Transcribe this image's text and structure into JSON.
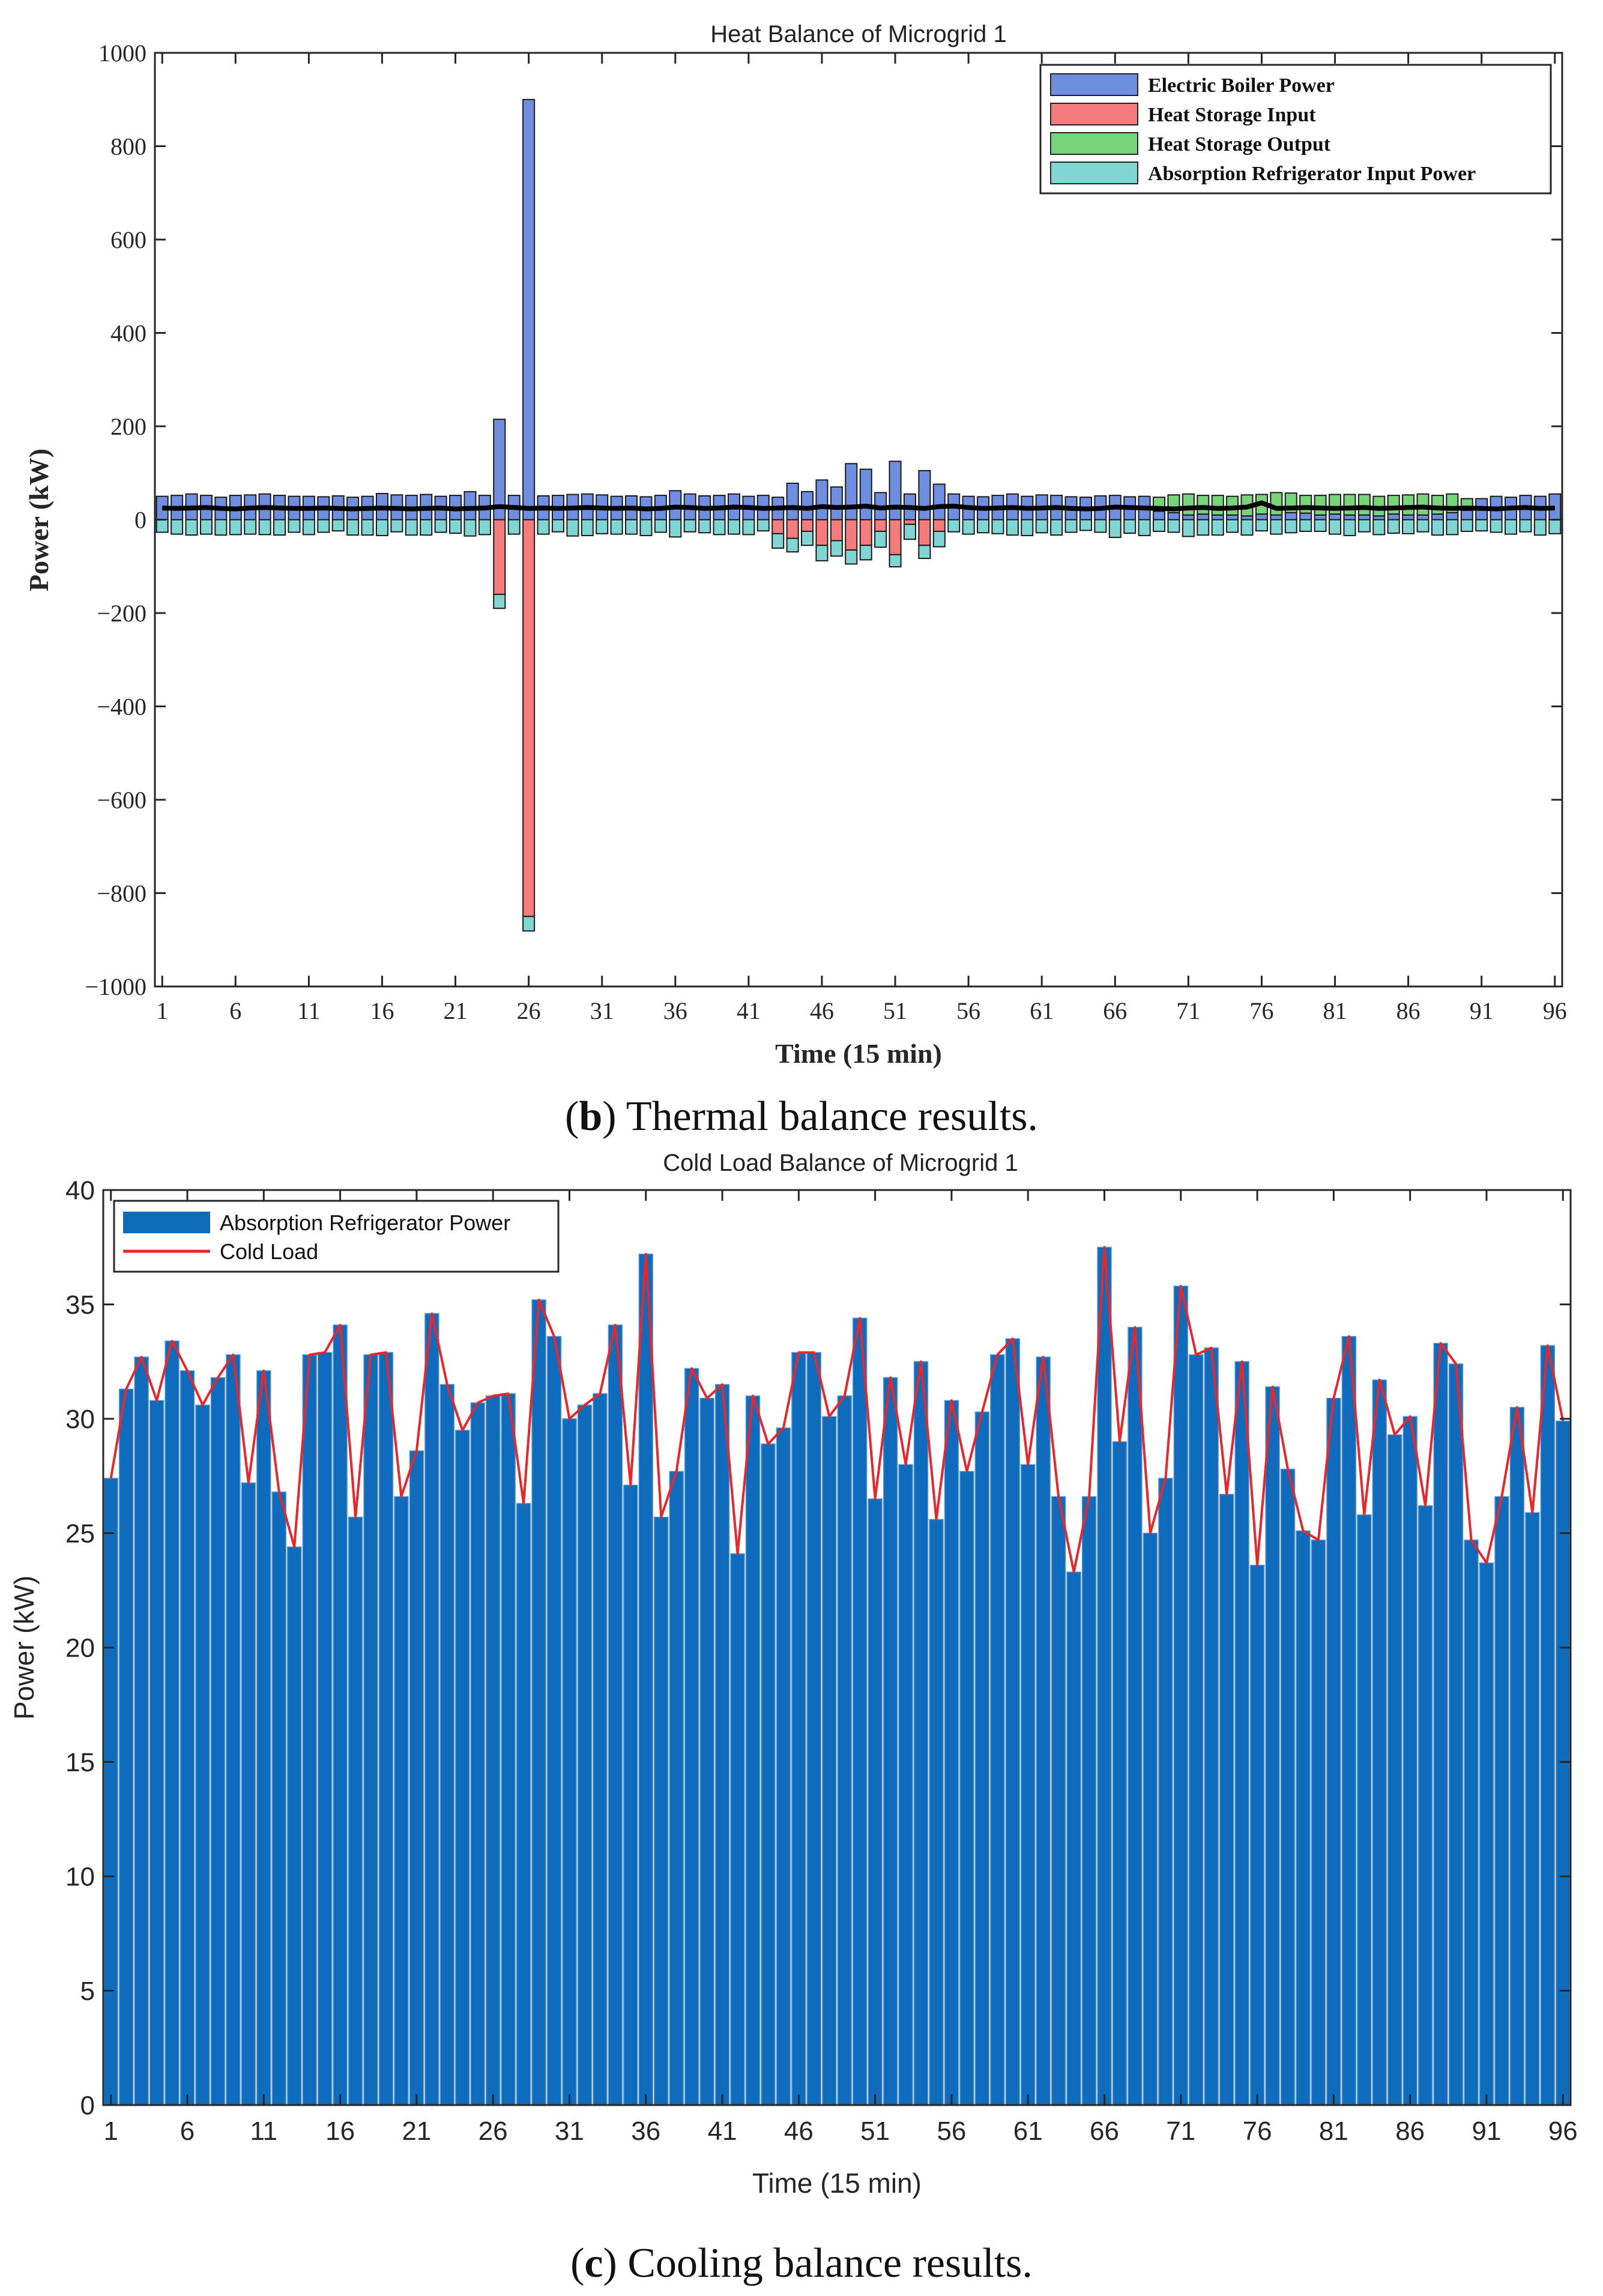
{
  "figure": {
    "caption_b_label": "b",
    "caption_b_text": "Thermal balance results.",
    "caption_c_label": "c",
    "caption_c_text": "Cooling balance results."
  },
  "colors": {
    "electric_boiler": "#6f8ee0",
    "heat_storage_input": "#f47c7c",
    "heat_storage_output": "#78d478",
    "absorption_input": "#7fd6d3",
    "heat_load_line": "#000000",
    "cold_bar": "#0f6cbd",
    "cold_line": "#e8262b"
  },
  "chart_data": [
    {
      "id": "thermal",
      "type": "bar",
      "stacked": true,
      "title": "Heat Balance of Microgrid 1",
      "xlabel": "Time (15 min)",
      "ylabel": "Power (kW)",
      "xlim": [
        1,
        96
      ],
      "ylim": [
        -1000,
        1000
      ],
      "xticks": [
        1,
        6,
        11,
        16,
        21,
        26,
        31,
        36,
        41,
        46,
        51,
        56,
        61,
        66,
        71,
        76,
        81,
        86,
        91,
        96
      ],
      "yticks": [
        -1000,
        -800,
        -600,
        -400,
        -200,
        0,
        200,
        400,
        600,
        800,
        1000
      ],
      "ytick_labels": [
        "−1000",
        "−800",
        "−600",
        "−400",
        "−200",
        "0",
        "200",
        "400",
        "600",
        "800",
        "1000"
      ],
      "legend_position": "top-right",
      "series": [
        {
          "name": "Electric Boiler Power",
          "color_key": "electric_boiler",
          "values": [
            50,
            52,
            55,
            52,
            48,
            52,
            53,
            55,
            52,
            50,
            50,
            49,
            51,
            48,
            50,
            56,
            53,
            52,
            54,
            50,
            52,
            60,
            52,
            215,
            52,
            900,
            51,
            52,
            54,
            55,
            53,
            50,
            51,
            49,
            52,
            62,
            55,
            51,
            52,
            55,
            50,
            52,
            48,
            78,
            60,
            85,
            70,
            120,
            108,
            58,
            125,
            55,
            105,
            76,
            55,
            50,
            49,
            52,
            55,
            50,
            53,
            52,
            49,
            48,
            51,
            52,
            49,
            50,
            18,
            15,
            10,
            12,
            10,
            10,
            8,
            12,
            10,
            15,
            14,
            10,
            12,
            10,
            10,
            8,
            12,
            10,
            10,
            12,
            15,
            20,
            45,
            50,
            48,
            52,
            50,
            55
          ]
        },
        {
          "name": "Heat Storage Input",
          "color_key": "heat_storage_input",
          "values": [
            0,
            0,
            0,
            0,
            0,
            0,
            0,
            0,
            0,
            0,
            0,
            0,
            0,
            0,
            0,
            0,
            0,
            0,
            0,
            0,
            0,
            0,
            0,
            -160,
            0,
            -850,
            0,
            0,
            0,
            0,
            0,
            0,
            0,
            0,
            0,
            0,
            0,
            0,
            0,
            0,
            0,
            0,
            -30,
            -40,
            -25,
            -55,
            -45,
            -65,
            -55,
            -25,
            -75,
            -10,
            -55,
            -25,
            0,
            0,
            0,
            0,
            0,
            0,
            0,
            0,
            0,
            0,
            0,
            0,
            0,
            0,
            0,
            0,
            0,
            0,
            0,
            0,
            0,
            0,
            0,
            0,
            0,
            0,
            0,
            0,
            0,
            0,
            0,
            0,
            0,
            0,
            0,
            0,
            0,
            0,
            0,
            0,
            0,
            0
          ]
        },
        {
          "name": "Heat Storage Output",
          "color_key": "heat_storage_output",
          "values": [
            0,
            0,
            0,
            0,
            0,
            0,
            0,
            0,
            0,
            0,
            0,
            0,
            0,
            0,
            0,
            0,
            0,
            0,
            0,
            0,
            0,
            0,
            0,
            0,
            0,
            0,
            0,
            0,
            0,
            0,
            0,
            0,
            0,
            0,
            0,
            0,
            0,
            0,
            0,
            0,
            0,
            0,
            0,
            0,
            0,
            0,
            0,
            0,
            0,
            0,
            0,
            0,
            0,
            0,
            0,
            0,
            0,
            0,
            0,
            0,
            0,
            0,
            0,
            0,
            0,
            0,
            0,
            0,
            30,
            38,
            45,
            40,
            42,
            40,
            45,
            42,
            48,
            42,
            38,
            42,
            42,
            44,
            44,
            42,
            40,
            43,
            45,
            40,
            40,
            25,
            0,
            0,
            0,
            0,
            0,
            0
          ]
        },
        {
          "name": "Absorption Refrigerator Input Power",
          "color_key": "absorption_input",
          "values": [
            -27,
            -31,
            -33,
            -31,
            -33,
            -32,
            -31,
            -32,
            -33,
            -27,
            -32,
            -27,
            -24,
            -33,
            -33,
            -34,
            -26,
            -33,
            -33,
            -27,
            -29,
            -35,
            -32,
            -30,
            -31,
            -31,
            -31,
            -26,
            -35,
            -34,
            -30,
            -31,
            -31,
            -34,
            -27,
            -37,
            -26,
            -28,
            -32,
            -31,
            -32,
            -24,
            -31,
            -29,
            -30,
            -33,
            -33,
            -30,
            -31,
            -34,
            -26,
            -32,
            -28,
            -33,
            -26,
            -31,
            -28,
            -30,
            -33,
            -34,
            -28,
            -33,
            -27,
            -23,
            -27,
            -38,
            -29,
            -34,
            -25,
            -27,
            -36,
            -33,
            -33,
            -27,
            -33,
            -24,
            -31,
            -28,
            -25,
            -25,
            -31,
            -34,
            -26,
            -32,
            -29,
            -30,
            -26,
            -33,
            -32,
            -25,
            -24,
            -27,
            -31,
            -26,
            -33,
            -30
          ]
        }
      ],
      "line": {
        "name": "Heat Load",
        "color_key": "heat_load_line",
        "values": [
          25,
          24,
          25,
          26,
          24,
          23,
          25,
          26,
          25,
          24,
          24,
          25,
          24,
          23,
          24,
          25,
          24,
          23,
          24,
          25,
          23,
          24,
          25,
          28,
          26,
          24,
          25,
          24,
          25,
          26,
          25,
          24,
          25,
          23,
          24,
          27,
          26,
          24,
          25,
          27,
          26,
          24,
          25,
          26,
          24,
          28,
          26,
          27,
          29,
          25,
          27,
          26,
          24,
          28,
          29,
          26,
          24,
          25,
          26,
          24,
          25,
          26,
          24,
          23,
          24,
          27,
          26,
          25,
          24,
          23,
          25,
          26,
          24,
          25,
          27,
          36,
          24,
          25,
          26,
          25,
          24,
          25,
          26,
          24,
          25,
          26,
          27,
          25,
          24,
          25,
          24,
          23,
          25,
          26,
          24,
          25
        ]
      }
    },
    {
      "id": "cooling",
      "type": "bar",
      "title": "Cold Load Balance of Microgrid 1",
      "xlabel": "Time (15 min)",
      "ylabel": "Power (kW)",
      "xlim": [
        1,
        96
      ],
      "ylim": [
        0,
        40
      ],
      "xticks": [
        1,
        6,
        11,
        16,
        21,
        26,
        31,
        36,
        41,
        46,
        51,
        56,
        61,
        66,
        71,
        76,
        81,
        86,
        91,
        96
      ],
      "yticks": [
        0,
        5,
        10,
        15,
        20,
        25,
        30,
        35,
        40
      ],
      "legend_position": "top-left",
      "series": [
        {
          "name": "Absorption Refrigerator Power",
          "color_key": "cold_bar",
          "values": [
            27.4,
            31.3,
            32.7,
            30.8,
            33.4,
            32.1,
            30.6,
            31.8,
            32.8,
            27.2,
            32.1,
            26.8,
            24.4,
            32.8,
            32.9,
            34.1,
            25.7,
            32.8,
            32.9,
            26.6,
            28.6,
            34.6,
            31.5,
            29.5,
            30.7,
            31.0,
            31.1,
            26.3,
            35.2,
            33.6,
            30.0,
            30.6,
            31.1,
            34.1,
            27.1,
            37.2,
            25.7,
            27.7,
            32.2,
            30.9,
            31.5,
            24.1,
            31.0,
            28.9,
            29.6,
            32.9,
            32.9,
            30.1,
            31.0,
            34.4,
            26.5,
            31.8,
            28.0,
            32.5,
            25.6,
            30.8,
            27.7,
            30.3,
            32.8,
            33.5,
            28.0,
            32.7,
            26.6,
            23.3,
            26.6,
            37.5,
            29.0,
            34.0,
            25.0,
            27.4,
            35.8,
            32.8,
            33.1,
            26.7,
            32.5,
            23.6,
            31.4,
            27.8,
            25.1,
            24.7,
            30.9,
            33.6,
            25.8,
            31.7,
            29.3,
            30.1,
            26.2,
            33.3,
            32.4,
            24.7,
            23.7,
            26.6,
            30.5,
            25.9,
            33.2,
            29.9
          ]
        }
      ],
      "line": {
        "name": "Cold Load",
        "color_key": "cold_line",
        "values": [
          27.4,
          31.3,
          32.7,
          30.8,
          33.4,
          32.1,
          30.6,
          31.8,
          32.8,
          27.2,
          32.1,
          26.8,
          24.4,
          32.8,
          32.9,
          34.1,
          25.7,
          32.8,
          32.9,
          26.6,
          28.6,
          34.6,
          31.5,
          29.5,
          30.7,
          31.0,
          31.1,
          26.3,
          35.2,
          33.6,
          30.0,
          30.6,
          31.1,
          34.1,
          27.1,
          37.2,
          25.7,
          27.7,
          32.2,
          30.9,
          31.5,
          24.1,
          31.0,
          28.9,
          29.6,
          32.9,
          32.9,
          30.1,
          31.0,
          34.4,
          26.5,
          31.8,
          28.0,
          32.5,
          25.6,
          30.8,
          27.7,
          30.3,
          32.8,
          33.5,
          28.0,
          32.7,
          26.6,
          23.3,
          26.6,
          37.5,
          29.0,
          34.0,
          25.0,
          27.4,
          35.8,
          32.8,
          33.1,
          26.7,
          32.5,
          23.6,
          31.4,
          27.8,
          25.1,
          24.7,
          30.9,
          33.6,
          25.8,
          31.7,
          29.3,
          30.1,
          26.2,
          33.3,
          32.4,
          24.7,
          23.7,
          26.6,
          30.5,
          25.9,
          33.2,
          29.9
        ]
      }
    }
  ]
}
